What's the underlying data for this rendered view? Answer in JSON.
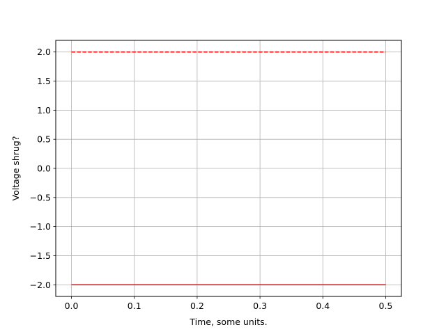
{
  "chart_data": {
    "type": "line",
    "title": "",
    "xlabel": "Time, some units.",
    "ylabel": "Voltage shrug?",
    "xlim": [
      -0.025,
      0.525
    ],
    "ylim": [
      -2.2,
      2.2
    ],
    "grid": true,
    "xticks": [
      "0.0",
      "0.1",
      "0.2",
      "0.3",
      "0.4",
      "0.5"
    ],
    "yticks": [
      "2.0",
      "1.5",
      "1.0",
      "0.5",
      "0.0",
      "−0.5",
      "−1.0",
      "−1.5",
      "−2.0"
    ],
    "series": [
      {
        "x": [
          0.0,
          0.5
        ],
        "y": [
          2.0,
          2.0
        ],
        "color": "#ff0000",
        "style": "dashed"
      },
      {
        "x": [
          0.0,
          0.5
        ],
        "y": [
          -2.0,
          -2.0
        ],
        "color": "#ff0000",
        "style": "solid"
      }
    ]
  }
}
